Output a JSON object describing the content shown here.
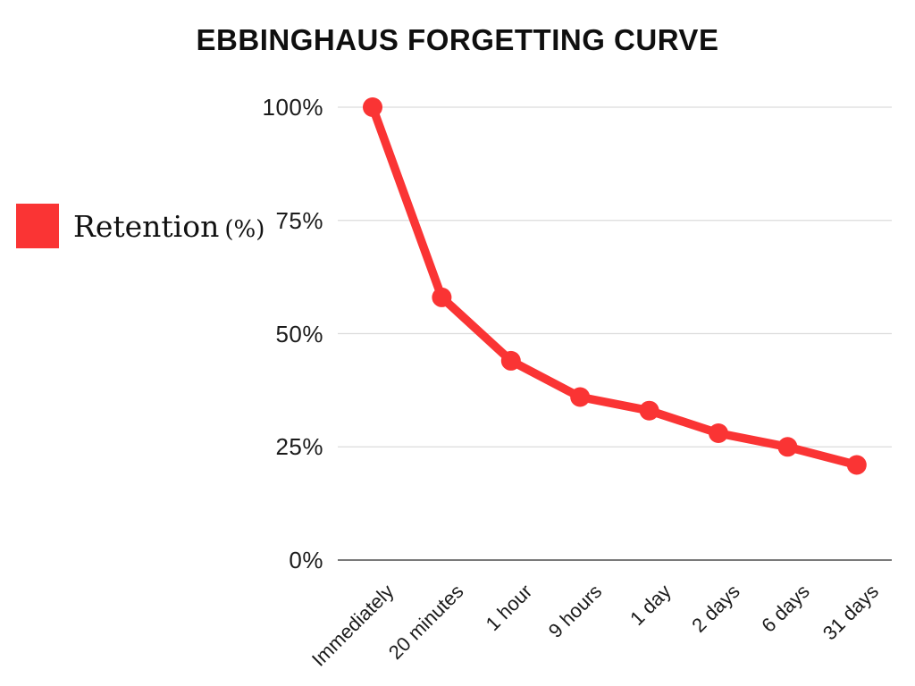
{
  "title": {
    "text": "EBBINGHAUS FORGETTING CURVE"
  },
  "legend": {
    "label": "Retention",
    "suffix": "(%)",
    "swatch_color": "#FA3434"
  },
  "chart_data": {
    "type": "line",
    "title": "EBBINGHAUS FORGETTING CURVE",
    "categories": [
      "Immediately",
      "20 minutes",
      "1 hour",
      "9 hours",
      "1 day",
      "2 days",
      "6 days",
      "31 days"
    ],
    "series": [
      {
        "name": "Retention (%)",
        "values": [
          100,
          58,
          44,
          36,
          33,
          28,
          25,
          21
        ]
      }
    ],
    "xlabel": "",
    "ylabel": "Retention (%)",
    "ylim": [
      0,
      100
    ],
    "yticks": [
      "100%",
      "75%",
      "50%",
      "25%",
      "0%"
    ],
    "ytick_values": [
      100,
      75,
      50,
      25,
      0
    ],
    "grid": true,
    "legend_position": "left",
    "colors": {
      "line": "#FA3434",
      "point": "#FA3434",
      "gridline": "#DCDCDC",
      "axis_line": "#4F4F4F",
      "text": "#1b1b1b"
    }
  }
}
